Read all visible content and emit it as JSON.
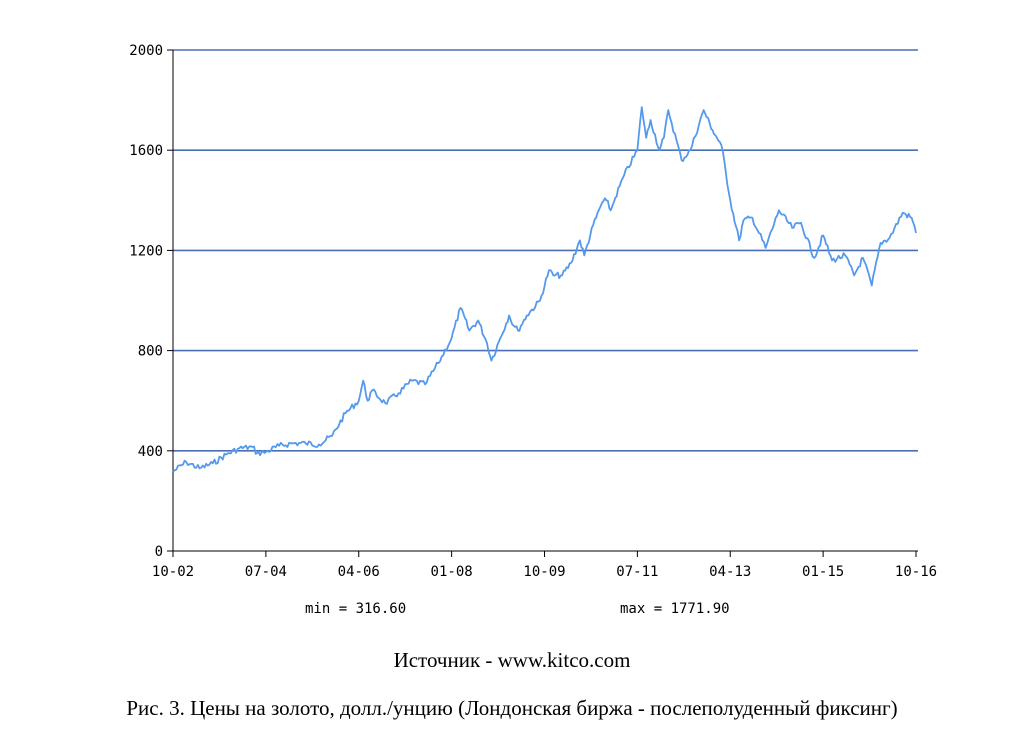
{
  "source": "Источник - www.kitco.com",
  "caption": "Рис. 3. Цены на золото, долл./унцию (Лондонская биржа - послеполуденный фиксинг)",
  "stats": {
    "min_label": "min = 316.60",
    "max_label": "max = 1771.90"
  },
  "colors": {
    "grid": "#4a6fb5",
    "line": "#5599ee",
    "axis": "#000000"
  },
  "chart_data": {
    "type": "line",
    "title": "",
    "xlabel": "",
    "ylabel": "",
    "ylim": [
      0,
      2000
    ],
    "yticks": [
      0,
      400,
      800,
      1200,
      1600,
      2000
    ],
    "xlim": [
      "10-02",
      "10-16"
    ],
    "xticks": [
      "10-02",
      "07-04",
      "04-06",
      "01-08",
      "10-09",
      "07-11",
      "04-13",
      "01-15",
      "10-16"
    ],
    "grid": true,
    "series": [
      {
        "points": [
          [
            "10-02",
            317
          ],
          [
            "01-03",
            355
          ],
          [
            "04-03",
            330
          ],
          [
            "07-03",
            350
          ],
          [
            "10-03",
            385
          ],
          [
            "01-04",
            410
          ],
          [
            "04-04",
            415
          ],
          [
            "05-04",
            390
          ],
          [
            "07-04",
            395
          ],
          [
            "10-04",
            420
          ],
          [
            "01-05",
            430
          ],
          [
            "04-05",
            430
          ],
          [
            "07-05",
            425
          ],
          [
            "10-05",
            460
          ],
          [
            "01-06",
            550
          ],
          [
            "04-06",
            600
          ],
          [
            "05-06",
            680
          ],
          [
            "06-06",
            600
          ],
          [
            "07-06",
            640
          ],
          [
            "10-06",
            590
          ],
          [
            "01-07",
            630
          ],
          [
            "04-07",
            680
          ],
          [
            "07-07",
            665
          ],
          [
            "10-07",
            750
          ],
          [
            "01-08",
            850
          ],
          [
            "03-08",
            970
          ],
          [
            "05-08",
            880
          ],
          [
            "07-08",
            920
          ],
          [
            "09-08",
            830
          ],
          [
            "10-08",
            760
          ],
          [
            "12-08",
            850
          ],
          [
            "02-09",
            940
          ],
          [
            "03-09",
            900
          ],
          [
            "04-09",
            880
          ],
          [
            "06-09",
            940
          ],
          [
            "09-09",
            1000
          ],
          [
            "11-09",
            1120
          ],
          [
            "12-09",
            1100
          ],
          [
            "02-10",
            1100
          ],
          [
            "04-10",
            1150
          ],
          [
            "06-10",
            1240
          ],
          [
            "07-10",
            1180
          ],
          [
            "09-10",
            1300
          ],
          [
            "11-10",
            1390
          ],
          [
            "12-10",
            1400
          ],
          [
            "01-11",
            1360
          ],
          [
            "02-11",
            1410
          ],
          [
            "04-11",
            1500
          ],
          [
            "07-11",
            1600
          ],
          [
            "08-11",
            1771.9
          ],
          [
            "09-11",
            1650
          ],
          [
            "10-11",
            1720
          ],
          [
            "12-11",
            1600
          ],
          [
            "01-12",
            1650
          ],
          [
            "02-12",
            1760
          ],
          [
            "05-12",
            1560
          ],
          [
            "07-12",
            1600
          ],
          [
            "10-12",
            1760
          ],
          [
            "12-12",
            1680
          ],
          [
            "02-13",
            1620
          ],
          [
            "04-13",
            1400
          ],
          [
            "06-13",
            1240
          ],
          [
            "07-13",
            1320
          ],
          [
            "09-13",
            1330
          ],
          [
            "12-13",
            1210
          ],
          [
            "03-14",
            1360
          ],
          [
            "06-14",
            1290
          ],
          [
            "08-14",
            1310
          ],
          [
            "11-14",
            1170
          ],
          [
            "01-15",
            1260
          ],
          [
            "03-15",
            1160
          ],
          [
            "06-15",
            1180
          ],
          [
            "08-15",
            1100
          ],
          [
            "10-15",
            1170
          ],
          [
            "12-15",
            1060
          ],
          [
            "02-16",
            1230
          ],
          [
            "04-16",
            1250
          ],
          [
            "07-16",
            1350
          ],
          [
            "09-16",
            1330
          ],
          [
            "10-16",
            1270
          ]
        ]
      }
    ]
  }
}
